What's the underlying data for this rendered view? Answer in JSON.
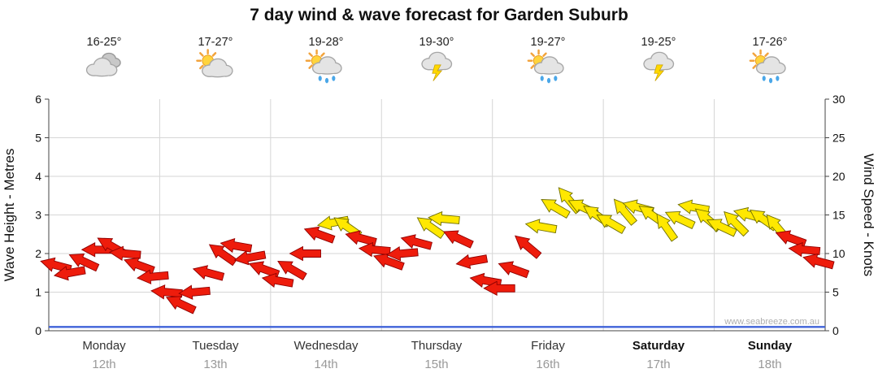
{
  "header": {
    "title": "7 day wind & wave forecast for Garden Suburb"
  },
  "days": [
    {
      "name": "Monday",
      "date": "12th",
      "temp": "16-25°",
      "icon": "cloudy"
    },
    {
      "name": "Tuesday",
      "date": "13th",
      "temp": "17-27°",
      "icon": "partly-cloudy"
    },
    {
      "name": "Wednesday",
      "date": "14th",
      "temp": "19-28°",
      "icon": "sun-showers"
    },
    {
      "name": "Thursday",
      "date": "15th",
      "temp": "19-30°",
      "icon": "storm"
    },
    {
      "name": "Friday",
      "date": "16th",
      "temp": "19-27°",
      "icon": "sun-showers"
    },
    {
      "name": "Saturday",
      "date": "17th",
      "temp": "19-25°",
      "icon": "storm"
    },
    {
      "name": "Sunday",
      "date": "18th",
      "temp": "17-26°",
      "icon": "sun-showers"
    }
  ],
  "chart_data": {
    "type": "scatter",
    "subtype": "wind-direction-arrows",
    "title": "7 day wind & wave forecast for Garden Suburb",
    "xlabel": "",
    "ylabel_left": "Wave Height - Metres",
    "ylabel_right": "Wind Speed - Knots",
    "ylim_left": [
      0,
      6
    ],
    "yticks_left": [
      0,
      1,
      2,
      3,
      4,
      5,
      6
    ],
    "ylim_right": [
      0,
      30
    ],
    "yticks_right": [
      0,
      5,
      10,
      15,
      20,
      25,
      30
    ],
    "x_categories": [
      "Monday",
      "Tuesday",
      "Wednesday",
      "Thursday",
      "Friday",
      "Saturday",
      "Sunday"
    ],
    "points_per_day": 8,
    "grid": true,
    "legend_position": "none",
    "series": [
      {
        "name": "Wind Speed (knots)",
        "values": [
          8.5,
          7.5,
          9,
          10.5,
          11,
          10,
          8.5,
          7,
          5,
          3.5,
          5,
          7.5,
          10,
          11,
          9.5,
          8,
          6.5,
          8,
          10,
          12.5,
          14,
          13.5,
          12,
          10.5,
          9,
          10,
          11.5,
          13.5,
          14.5,
          12,
          9,
          6.5,
          5.5,
          8,
          11,
          13.5,
          16,
          17,
          16,
          15,
          14,
          15.5,
          16,
          15,
          13.5,
          14.5,
          16,
          14.5,
          13.5,
          14,
          15,
          14.5,
          13.5,
          12,
          10.5,
          9
        ],
        "dirs_deg": [
          195,
          170,
          205,
          180,
          210,
          185,
          200,
          175,
          185,
          205,
          175,
          195,
          215,
          190,
          170,
          200,
          190,
          210,
          180,
          200,
          170,
          215,
          195,
          185,
          200,
          175,
          195,
          215,
          185,
          205,
          170,
          190,
          180,
          200,
          220,
          190,
          210,
          230,
          205,
          215,
          210,
          230,
          195,
          215,
          235,
          205,
          190,
          220,
          205,
          225,
          195,
          215,
          230,
          200,
          185,
          195
        ]
      }
    ],
    "wave_height_series": {
      "shape": "flat",
      "approx_metres": 0.1,
      "color": "#3f62d8"
    },
    "color_rule": {
      "yellow_min_knots": 13
    },
    "colors": {
      "light_wind_arrow": "#ee1c0c",
      "moderate_wind_arrow": "#ffe800",
      "grid": "#d6d6d6",
      "axis": "#444444",
      "watermark": "#b0b0b0"
    },
    "watermark": "www.seabreeze.com.au"
  },
  "watermark": "www.seabreeze.com.au"
}
